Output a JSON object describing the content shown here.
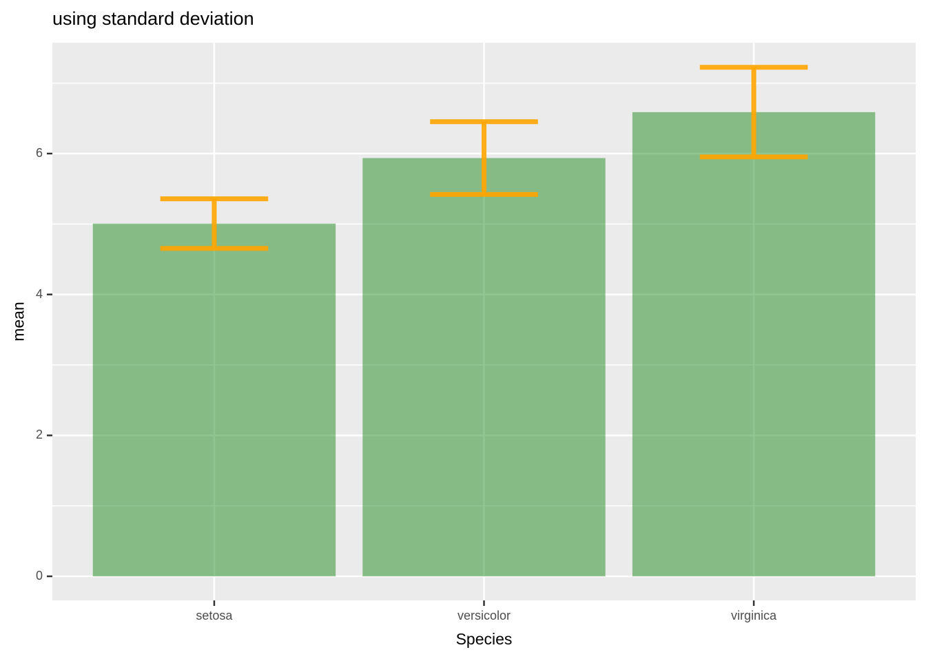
{
  "title": "using standard deviation",
  "chart_data": {
    "type": "bar",
    "title": "using standard deviation",
    "xlabel": "Species",
    "ylabel": "mean",
    "categories": [
      "setosa",
      "versicolor",
      "virginica"
    ],
    "series": [
      {
        "name": "mean",
        "values": [
          5.006,
          5.936,
          6.588
        ]
      }
    ],
    "error_bars": {
      "kind": "standard deviation",
      "sd": [
        0.352,
        0.516,
        0.636
      ],
      "ymin": [
        4.654,
        5.42,
        5.952
      ],
      "ymax": [
        5.358,
        6.452,
        7.224
      ]
    },
    "y_ticks": [
      0,
      2,
      4,
      6
    ],
    "y_minor_ticks": [
      1,
      3,
      5,
      7
    ],
    "ylim": [
      -0.342,
      7.574
    ],
    "x_expand": 0.6,
    "bar_width_fraction": 0.9,
    "errorbar_cap_fraction": 0.4,
    "grid": true,
    "legend": "none",
    "style": {
      "panel_background": "#EBEBEB",
      "gridline_color": "#FFFFFF",
      "bar_fill": "rgba(34,139,34,0.5)",
      "errorbar_color": "rgba(255,165,0,0.9)",
      "tick_mark_color": "#333333",
      "tick_label_color": "#4D4D4D",
      "title_color": "#000000"
    }
  }
}
